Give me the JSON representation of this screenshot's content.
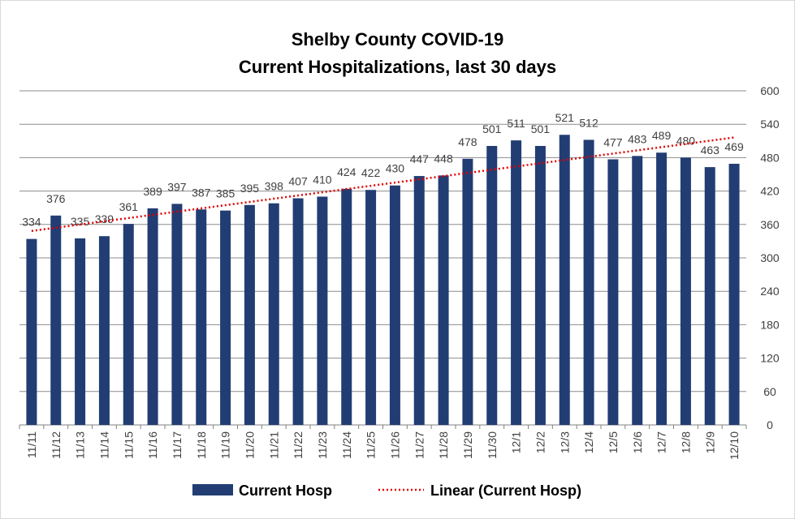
{
  "chart_data": {
    "type": "bar",
    "title": "Shelby County COVID-19",
    "subtitle": "Current Hospitalizations, last 30 days",
    "categories": [
      "11/11",
      "11/12",
      "11/13",
      "11/14",
      "11/15",
      "11/16",
      "11/17",
      "11/18",
      "11/19",
      "11/20",
      "11/21",
      "11/22",
      "11/23",
      "11/24",
      "11/25",
      "11/26",
      "11/27",
      "11/28",
      "11/29",
      "11/30",
      "12/1",
      "12/2",
      "12/3",
      "12/4",
      "12/5",
      "12/6",
      "12/7",
      "12/8",
      "12/9",
      "12/10"
    ],
    "series": [
      {
        "name": "Current Hosp",
        "color": "#223d73",
        "values": [
          334,
          376,
          335,
          339,
          361,
          389,
          397,
          387,
          385,
          395,
          398,
          407,
          410,
          424,
          422,
          430,
          447,
          448,
          478,
          501,
          511,
          501,
          521,
          512,
          477,
          483,
          489,
          480,
          463,
          469
        ]
      }
    ],
    "trendline": {
      "name": "Linear (Current Hosp)",
      "type": "linear",
      "color": "#e00000",
      "style": "dotted"
    },
    "ylim": [
      0,
      600
    ],
    "yticks": [
      0,
      60,
      120,
      180,
      240,
      300,
      360,
      420,
      480,
      540,
      600
    ],
    "y_axis_side": "right",
    "xlabel": "",
    "ylabel": "",
    "grid": true,
    "data_labels": true,
    "legend_position": "bottom"
  }
}
